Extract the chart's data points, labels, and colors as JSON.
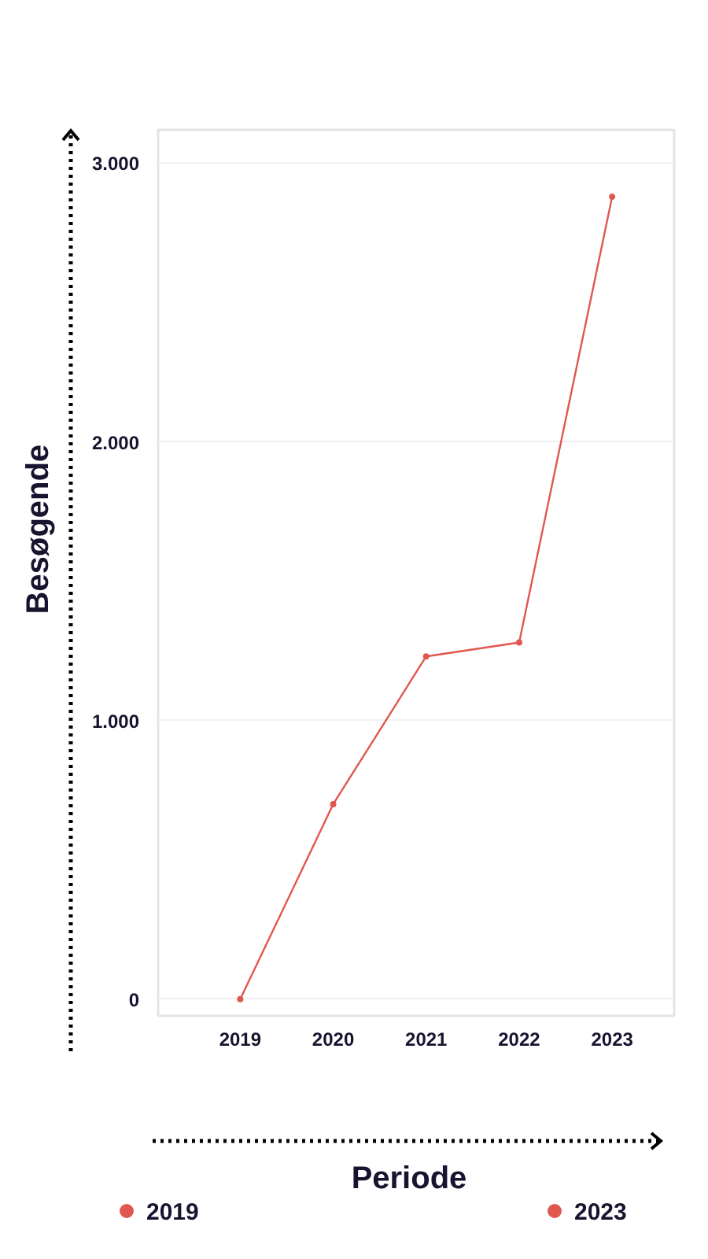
{
  "chart_data": {
    "type": "line",
    "xlabel": "Periode",
    "ylabel": "Besøgende",
    "categories": [
      "2019",
      "2020",
      "2021",
      "2022",
      "2023"
    ],
    "series": [
      {
        "color": "#e0574f",
        "values": [
          0,
          700,
          1230,
          1280,
          2880
        ]
      }
    ],
    "ylim": [
      -60,
      3120
    ],
    "yticks": [
      0,
      {
        "value": 1000,
        "label": "1.000"
      },
      {
        "value": 2000,
        "label": "2.000"
      },
      {
        "value": 3000,
        "label": "3.000"
      }
    ],
    "grid": "y",
    "marker": "circle",
    "line_style": "solid",
    "annotations": [
      "2019",
      "2023"
    ]
  }
}
